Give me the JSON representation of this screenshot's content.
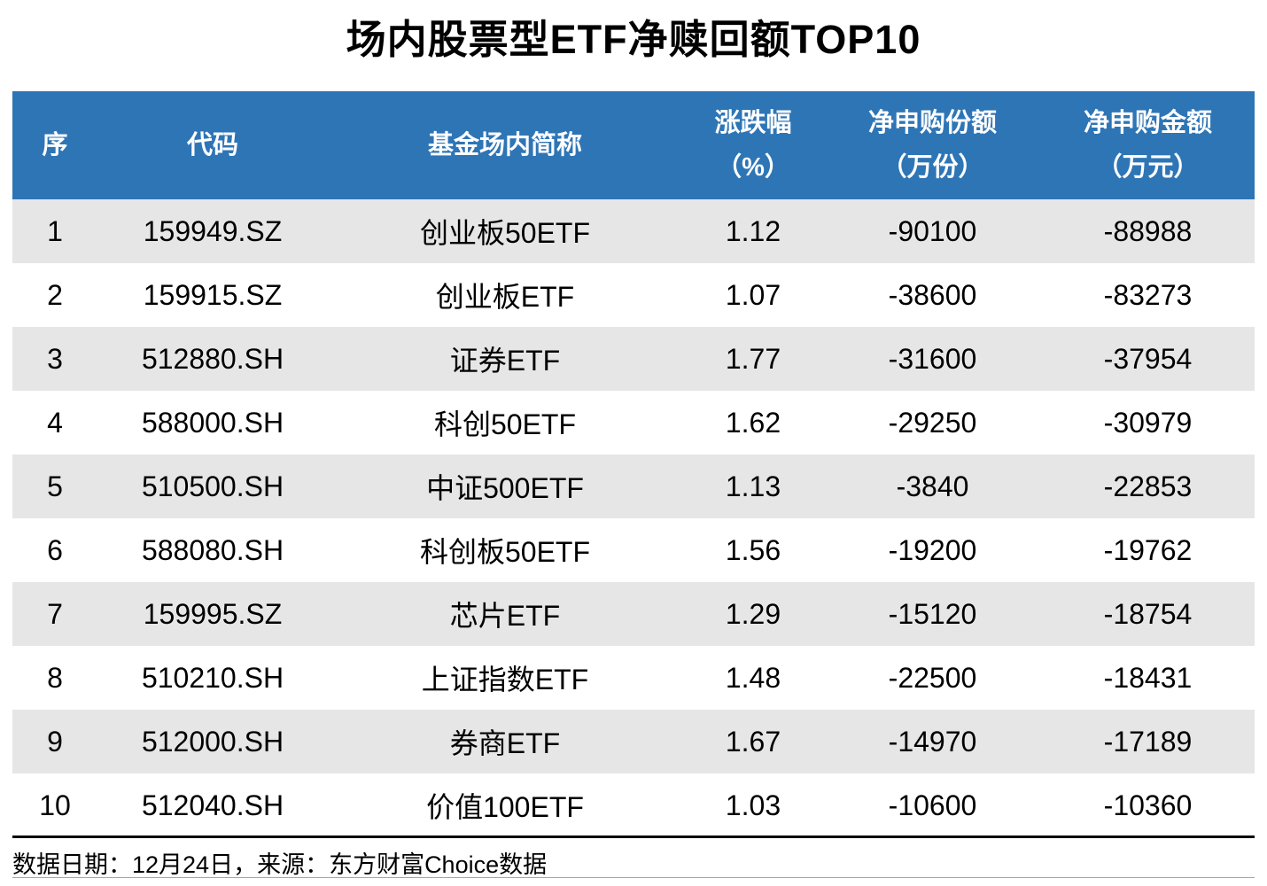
{
  "title": "场内股票型ETF净赎回额TOP10",
  "header": {
    "columns": [
      {
        "label": "序",
        "unit": ""
      },
      {
        "label": "代码",
        "unit": ""
      },
      {
        "label": "基金场内简称",
        "unit": ""
      },
      {
        "label": "涨跌幅",
        "unit": "（%）"
      },
      {
        "label": "净申购份额",
        "unit": "（万份）"
      },
      {
        "label": "净申购金额",
        "unit": "（万元）"
      }
    ]
  },
  "rows": [
    {
      "rank": "1",
      "code": "159949.SZ",
      "name": "创业板50ETF",
      "change": "1.12",
      "shares": "-90100",
      "amount": "-88988"
    },
    {
      "rank": "2",
      "code": "159915.SZ",
      "name": "创业板ETF",
      "change": "1.07",
      "shares": "-38600",
      "amount": "-83273"
    },
    {
      "rank": "3",
      "code": "512880.SH",
      "name": "证券ETF",
      "change": "1.77",
      "shares": "-31600",
      "amount": "-37954"
    },
    {
      "rank": "4",
      "code": "588000.SH",
      "name": "科创50ETF",
      "change": "1.62",
      "shares": "-29250",
      "amount": "-30979"
    },
    {
      "rank": "5",
      "code": "510500.SH",
      "name": "中证500ETF",
      "change": "1.13",
      "shares": "-3840",
      "amount": "-22853"
    },
    {
      "rank": "6",
      "code": "588080.SH",
      "name": "科创板50ETF",
      "change": "1.56",
      "shares": "-19200",
      "amount": "-19762"
    },
    {
      "rank": "7",
      "code": "159995.SZ",
      "name": "芯片ETF",
      "change": "1.29",
      "shares": "-15120",
      "amount": "-18754"
    },
    {
      "rank": "8",
      "code": "510210.SH",
      "name": "上证指数ETF",
      "change": "1.48",
      "shares": "-22500",
      "amount": "-18431"
    },
    {
      "rank": "9",
      "code": "512000.SH",
      "name": "券商ETF",
      "change": "1.67",
      "shares": "-14970",
      "amount": "-17189"
    },
    {
      "rank": "10",
      "code": "512040.SH",
      "name": "价值100ETF",
      "change": "1.03",
      "shares": "-10600",
      "amount": "-10360"
    }
  ],
  "footer": {
    "text": "数据日期：12月24日，来源：东方财富Choice数据"
  },
  "colors": {
    "header_bg": "#2E75B6",
    "header_text": "#FFFFFF",
    "row_alt_bg": "#E6E6E6",
    "body_text": "#000000"
  },
  "chart_data": {
    "type": "table",
    "title": "场内股票型ETF净赎回额TOP10",
    "columns": [
      "序",
      "代码",
      "基金场内简称",
      "涨跌幅（%）",
      "净申购份额（万份）",
      "净申购金额（万元）"
    ],
    "rows": [
      [
        1,
        "159949.SZ",
        "创业板50ETF",
        1.12,
        -90100,
        -88988
      ],
      [
        2,
        "159915.SZ",
        "创业板ETF",
        1.07,
        -38600,
        -83273
      ],
      [
        3,
        "512880.SH",
        "证券ETF",
        1.77,
        -31600,
        -37954
      ],
      [
        4,
        "588000.SH",
        "科创50ETF",
        1.62,
        -29250,
        -30979
      ],
      [
        5,
        "510500.SH",
        "中证500ETF",
        1.13,
        -3840,
        -22853
      ],
      [
        6,
        "588080.SH",
        "科创板50ETF",
        1.56,
        -19200,
        -19762
      ],
      [
        7,
        "159995.SZ",
        "芯片ETF",
        1.29,
        -15120,
        -18754
      ],
      [
        8,
        "510210.SH",
        "上证指数ETF",
        1.48,
        -22500,
        -18431
      ],
      [
        9,
        "512000.SH",
        "券商ETF",
        1.67,
        -14970,
        -17189
      ],
      [
        10,
        "512040.SH",
        "价值100ETF",
        1.03,
        -10600,
        -10360
      ]
    ],
    "source_note": "数据日期：12月24日，来源：东方财富Choice数据",
    "layout": "header row blue (#2E75B6) with white bold text; body rows alternate grey (#E6E6E6) and white; all cells center-aligned; thick black rule above source note, thin grey rule below"
  }
}
